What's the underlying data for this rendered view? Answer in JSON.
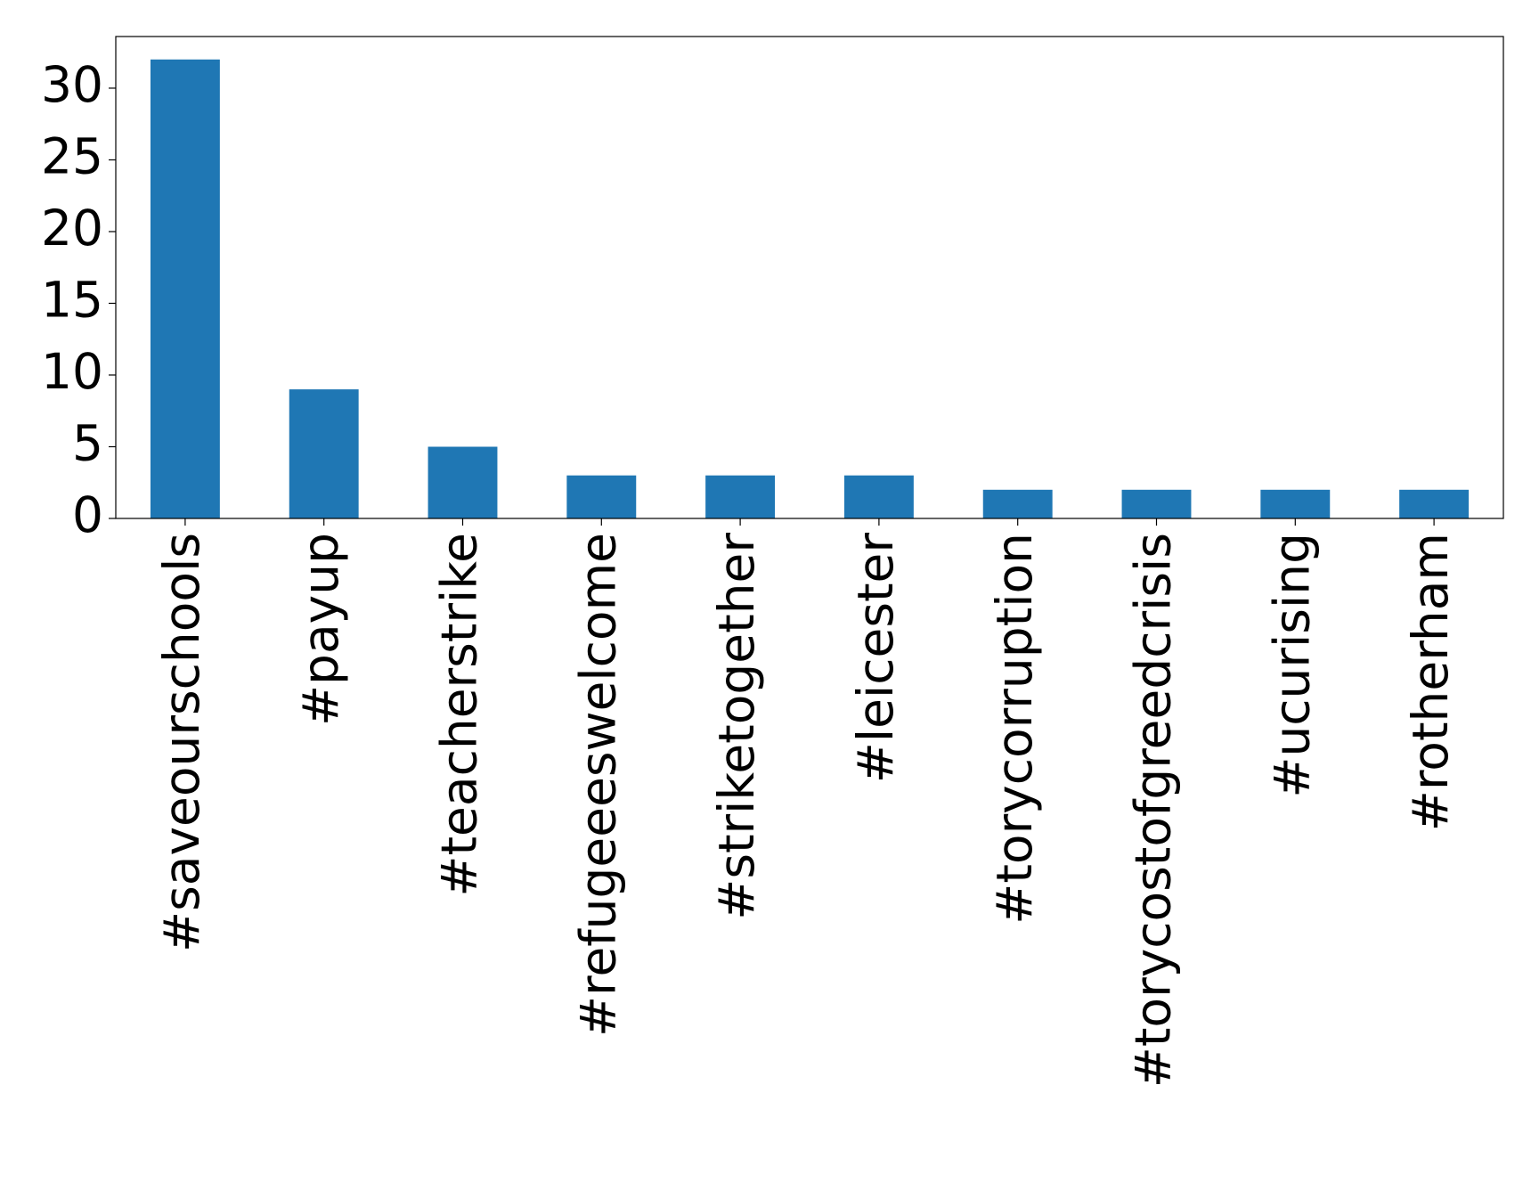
{
  "chart_data": {
    "type": "bar",
    "categories": [
      "#saveourschools",
      "#payup",
      "#teacherstrike",
      "#refugeeeswelcome",
      "#striketogether",
      "#leicester",
      "#torycorruption",
      "#torycostofgreedcrisis",
      "#ucurising",
      "#rotherham"
    ],
    "values": [
      32,
      9,
      5,
      3,
      3,
      3,
      2,
      2,
      2,
      2
    ],
    "color": "#1f77b4",
    "ylim": [
      0,
      33.6
    ],
    "yticks": [
      0,
      5,
      10,
      15,
      20,
      25,
      30
    ],
    "grid": false
  }
}
